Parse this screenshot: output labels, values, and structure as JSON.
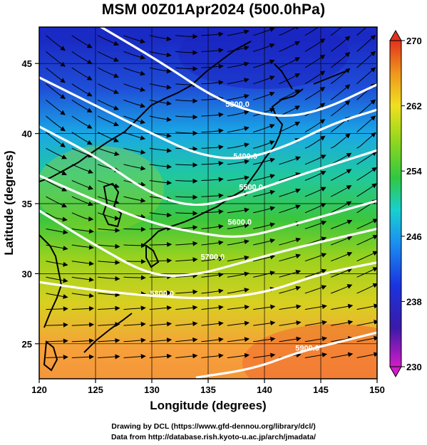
{
  "title": "MSM 00Z01Apr2024 (500.0hPa)",
  "axes": {
    "xlabel": "Longitude (degrees)",
    "ylabel": "Latitude  (degrees)",
    "xlim": [
      120,
      150
    ],
    "ylim": [
      22.5,
      47.6
    ],
    "xticks": [
      "120",
      "125",
      "130",
      "135",
      "140",
      "145",
      "150"
    ],
    "yticks": [
      "25",
      "30",
      "35",
      "40",
      "45"
    ]
  },
  "colorbar": {
    "min": 230,
    "max": 270,
    "labels": [
      "270",
      "262",
      "254",
      "246",
      "238",
      "230"
    ]
  },
  "map_data": {
    "field": "temperature (K), shaded",
    "overlays": [
      "geopotential height contours",
      "wind streamlines",
      "coastlines"
    ],
    "contours": [
      {
        "label": "5300.0",
        "points": [
          [
            125.5,
            47.6
          ],
          [
            131,
            45
          ],
          [
            136,
            42.3
          ],
          [
            141,
            41.1
          ],
          [
            145,
            41.6
          ],
          [
            150,
            43.5
          ]
        ]
      },
      {
        "label": "5400.0",
        "points": [
          [
            120,
            44
          ],
          [
            125,
            42
          ],
          [
            130,
            40
          ],
          [
            134,
            38.5
          ],
          [
            138,
            38.1
          ],
          [
            142,
            39.1
          ],
          [
            146,
            40.7
          ],
          [
            150,
            41.7
          ]
        ]
      },
      {
        "label": "5500.0",
        "points": [
          [
            120,
            40.5
          ],
          [
            125,
            38.4
          ],
          [
            130,
            35.6
          ],
          [
            134,
            34.7
          ],
          [
            138,
            35.6
          ],
          [
            143,
            37
          ],
          [
            150,
            38.8
          ]
        ]
      },
      {
        "label": "5600.0",
        "points": [
          [
            120,
            37
          ],
          [
            125,
            35.2
          ],
          [
            130,
            33.6
          ],
          [
            134,
            32.9
          ],
          [
            138,
            32.5
          ],
          [
            143,
            33.6
          ],
          [
            150,
            35.2
          ]
        ]
      },
      {
        "label": "5700.0",
        "points": [
          [
            120,
            34.5
          ],
          [
            125,
            32
          ],
          [
            130,
            29.8
          ],
          [
            134,
            29.9
          ],
          [
            138,
            30.8
          ],
          [
            143,
            31.9
          ],
          [
            150,
            33.2
          ]
        ]
      },
      {
        "label": "5800.0",
        "points": [
          [
            120,
            29.4
          ],
          [
            125,
            28.8
          ],
          [
            130,
            28.4
          ],
          [
            135,
            28.2
          ],
          [
            140,
            28.6
          ],
          [
            145,
            30
          ],
          [
            150,
            30.8
          ]
        ]
      },
      {
        "label": "5900.0",
        "points": [
          [
            134,
            22.6
          ],
          [
            139,
            23.2
          ],
          [
            143,
            24.4
          ],
          [
            147,
            25.2
          ],
          [
            150,
            25.8
          ]
        ]
      }
    ],
    "contour_labels": [
      {
        "text": "5300.0",
        "at": [
          137.6,
          41.9
        ]
      },
      {
        "text": "5400.0",
        "at": [
          138.3,
          38.2
        ]
      },
      {
        "text": "5500.0",
        "at": [
          138.8,
          36
        ]
      },
      {
        "text": "5600.0",
        "at": [
          137.8,
          33.5
        ]
      },
      {
        "text": "5700.0",
        "at": [
          135.4,
          31
        ]
      },
      {
        "text": "5800.0",
        "at": [
          130.9,
          28.4
        ]
      },
      {
        "text": "5900.0",
        "at": [
          143.8,
          24.5
        ]
      }
    ],
    "temperature_samples": [
      {
        "lon": 138,
        "lat": 46,
        "t": 238
      },
      {
        "lon": 130,
        "lat": 40,
        "t": 252
      },
      {
        "lon": 125,
        "lat": 35,
        "t": 255
      },
      {
        "lon": 135,
        "lat": 30,
        "t": 259
      },
      {
        "lon": 125,
        "lat": 26,
        "t": 264
      },
      {
        "lon": 147,
        "lat": 24,
        "t": 266
      }
    ]
  },
  "credit": {
    "line1": "Drawing by DCL (https://www.gfd-dennou.org/library/dcl/)",
    "line2": "Data from http://database.rish.kyoto-u.ac.jp/arch/jmadata/"
  }
}
